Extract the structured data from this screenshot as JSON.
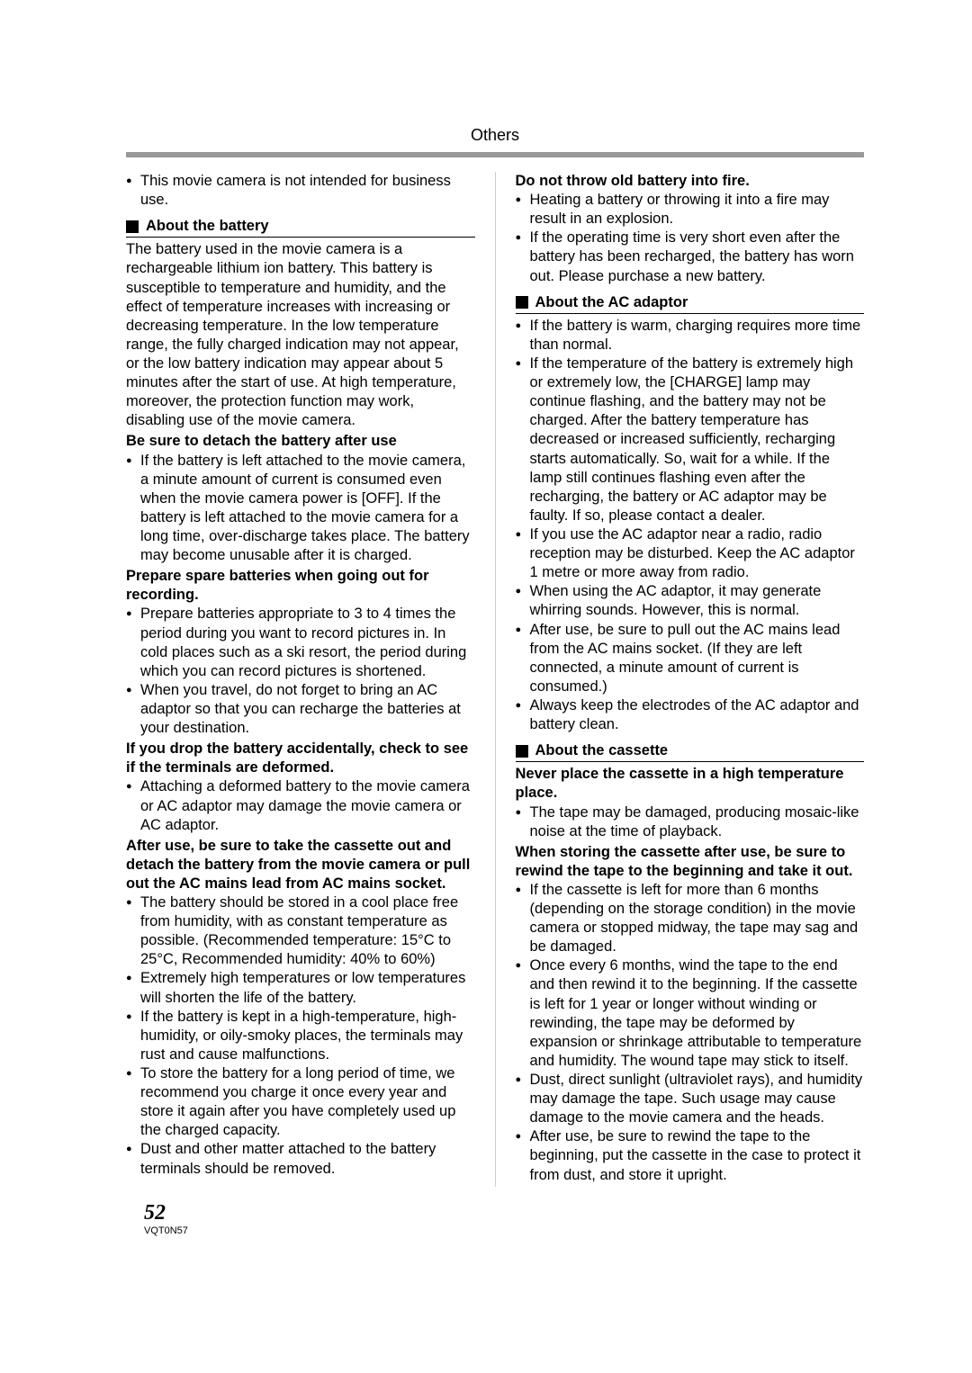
{
  "header": {
    "label": "Others"
  },
  "left": {
    "top_bullet": "This movie camera is not intended for business use.",
    "heading1": "About the battery",
    "para1": "The battery used in the movie camera is a rechargeable lithium ion battery. This battery is susceptible to temperature and humidity, and the effect of temperature increases with increasing or decreasing temperature. In the low temperature range, the fully charged indication may not appear, or the low battery indication may appear about 5 minutes after the start of use. At high temperature, moreover, the protection function may work, disabling use of the movie camera.",
    "sub1": "Be sure to detach the battery after use",
    "b1": "If the battery is left attached to the movie camera, a minute amount of current is consumed even when the movie camera power is [OFF]. If the battery is left attached to the movie camera for a long time, over-discharge takes place. The battery may become unusable after it is charged.",
    "sub2": "Prepare spare batteries when going out for recording.",
    "b2a": "Prepare batteries appropriate to 3 to 4 times the period during you want to record pictures in. In cold places such as a ski resort, the period during which you can record pictures is shortened.",
    "b2b": "When you travel, do not forget to bring an AC adaptor so that you can recharge the batteries at your destination.",
    "sub3": "If you drop the battery accidentally, check to see if the terminals are deformed.",
    "b3": "Attaching a deformed battery to the movie camera or AC adaptor may damage the movie camera or AC adaptor.",
    "sub4": "After use, be sure to take the cassette out and detach the battery from the movie camera or pull out the AC mains lead from AC mains socket.",
    "b4a": "The battery should be stored in a cool place free from humidity, with as constant temperature as possible. (Recommended temperature: 15°C to 25°C, Recommended humidity: 40% to 60%)",
    "b4b": "Extremely high temperatures or low temperatures will shorten the life of the battery.",
    "b4c": "If the battery is kept in a high-temperature, high-humidity, or oily-smoky places, the terminals may rust and cause malfunctions.",
    "b4d": "To store the battery for a long period of time, we recommend you charge it once every year and store it again after you have completely used up the charged capacity.",
    "b4e": "Dust and other matter attached to the battery terminals should be removed."
  },
  "right": {
    "sub1": "Do not throw old battery into fire.",
    "b1a": "Heating a battery or throwing it into a fire may result in an explosion.",
    "b1b": "If the operating time is very short even after the battery has been recharged, the battery has worn out. Please purchase a new battery.",
    "heading1": "About the AC adaptor",
    "c1": "If the battery is warm, charging requires more time than normal.",
    "c2": "If the temperature of the battery is extremely high or extremely low, the [CHARGE] lamp may continue flashing, and the battery may not be charged. After the battery temperature has decreased or increased sufficiently, recharging starts automatically. So, wait for a while. If the lamp still continues flashing even after the recharging, the battery or AC adaptor may be faulty. If so, please contact a dealer.",
    "c3": "If you use the AC adaptor near a radio, radio reception may be disturbed. Keep the AC adaptor 1 metre or more away from radio.",
    "c4": "When using the AC adaptor, it may generate whirring sounds. However, this is normal.",
    "c5": "After use, be sure to pull out the AC mains lead from the AC mains socket. (If they are left connected, a minute amount of current is consumed.)",
    "c6": "Always keep the electrodes of the AC adaptor and battery clean.",
    "heading2": "About the cassette",
    "sub2": "Never place the cassette in a high temperature place.",
    "d1": "The tape may be damaged, producing mosaic-like noise at the time of playback.",
    "sub3": "When storing the cassette after use, be sure to rewind the tape to the beginning and take it out.",
    "e1": "If the cassette is left for more than 6 months (depending on the storage condition) in the movie camera or stopped midway, the tape may sag and be damaged.",
    "e2": "Once every 6 months, wind the tape to the end and then rewind it to the beginning. If the cassette is left for 1 year or longer without winding or rewinding, the tape may be deformed by expansion or shrinkage attributable to temperature and humidity. The wound tape may stick to itself.",
    "e3": "Dust, direct sunlight (ultraviolet rays), and humidity may damage the tape. Such usage may cause damage to the movie camera and the heads.",
    "e4": "After use, be sure to rewind the tape to the beginning, put the cassette in the case to protect it from dust, and store it upright."
  },
  "footer": {
    "page": "52",
    "pubid": "VQT0N57"
  }
}
